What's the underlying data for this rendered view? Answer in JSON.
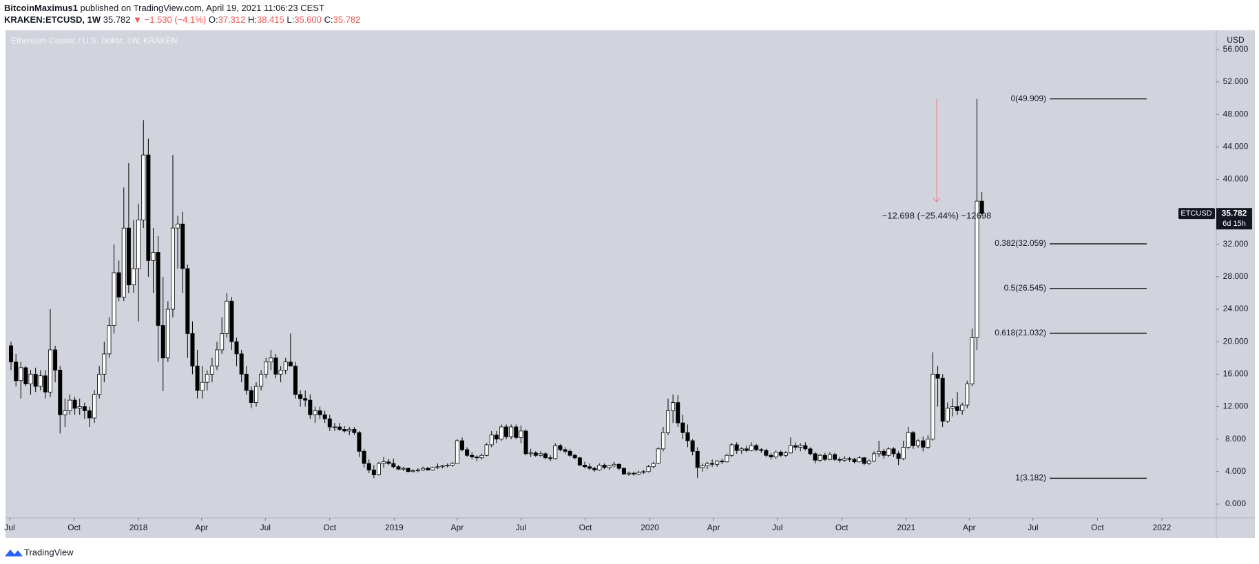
{
  "header": {
    "author": "BitcoinMaximus1",
    "published": "published on TradingView.com, April 19, 2021 11:06:23 CEST",
    "symbol": "KRAKEN:ETCUSD, 1W",
    "last": "35.782",
    "change": "▼ −1.530 (−4.1%)",
    "ohlc": [
      {
        "key": "O:",
        "value": "37.312"
      },
      {
        "key": "H:",
        "value": "38.415"
      },
      {
        "key": "L:",
        "value": "35.600"
      },
      {
        "key": "C:",
        "value": "35.782"
      }
    ]
  },
  "chart_data": {
    "type": "candlestick",
    "title": "Ethereum Classic / U.S. Dollar, 1W, KRAKEN",
    "axis_label": "USD",
    "up_color": "#ffffff",
    "down_color": "#000000",
    "grid": false,
    "xlim": [
      -1.13,
      245.81
    ],
    "xticks": [
      {
        "value": -0.29,
        "label": "Jul"
      },
      {
        "value": 12.86,
        "label": "Oct"
      },
      {
        "value": 26,
        "label": "2018"
      },
      {
        "value": 38.86,
        "label": "Apr"
      },
      {
        "value": 51.86,
        "label": "Jul"
      },
      {
        "value": 65,
        "label": "Oct"
      },
      {
        "value": 78.14,
        "label": "2019"
      },
      {
        "value": 91,
        "label": "Apr"
      },
      {
        "value": 104,
        "label": "Jul"
      },
      {
        "value": 117.14,
        "label": "Oct"
      },
      {
        "value": 130.29,
        "label": "2020"
      },
      {
        "value": 143.29,
        "label": "Apr"
      },
      {
        "value": 156.29,
        "label": "Jul"
      },
      {
        "value": 169.43,
        "label": "Oct"
      },
      {
        "value": 182.57,
        "label": "2021"
      },
      {
        "value": 195.43,
        "label": "Apr"
      },
      {
        "value": 208.43,
        "label": "Jul"
      },
      {
        "value": 221.57,
        "label": "Oct"
      },
      {
        "value": 234.71,
        "label": "2022"
      }
    ],
    "ylim": [
      -1.7,
      58.36
    ],
    "yticks": [
      {
        "value": 0,
        "label": "0.000"
      },
      {
        "value": 4,
        "label": "4.000"
      },
      {
        "value": 8,
        "label": "8.000"
      },
      {
        "value": 12,
        "label": "12.000"
      },
      {
        "value": 16,
        "label": "16.000"
      },
      {
        "value": 20,
        "label": "20.000"
      },
      {
        "value": 24,
        "label": "24.000"
      },
      {
        "value": 28,
        "label": "28.000"
      },
      {
        "value": 32,
        "label": "32.000"
      },
      {
        "value": 36,
        "label": "36.000"
      },
      {
        "value": 40,
        "label": "40.000"
      },
      {
        "value": 44,
        "label": "44.000"
      },
      {
        "value": 48,
        "label": "48.000"
      },
      {
        "value": 52,
        "label": "52.000"
      },
      {
        "value": 56,
        "label": "56.000"
      }
    ],
    "candles": [
      [
        19.5,
        20,
        16.5,
        17.5
      ],
      [
        17.5,
        18.5,
        14.5,
        15.2
      ],
      [
        15.2,
        17.5,
        13,
        16.8
      ],
      [
        16.8,
        17,
        14.5,
        14.8
      ],
      [
        14.8,
        16.5,
        13.5,
        16
      ],
      [
        16,
        16.8,
        13.8,
        14.5
      ],
      [
        14.5,
        16.5,
        14,
        15.8
      ],
      [
        15.8,
        16.5,
        13,
        13.8
      ],
      [
        13.8,
        24,
        13.2,
        19
      ],
      [
        19,
        19.5,
        15,
        16.5
      ],
      [
        16.5,
        17,
        8.7,
        11
      ],
      [
        11,
        13,
        9.5,
        11.5
      ],
      [
        11.5,
        13.5,
        11,
        12.8
      ],
      [
        12.8,
        13.2,
        11,
        11.8
      ],
      [
        11.8,
        13,
        11,
        12
      ],
      [
        12,
        12.5,
        10.5,
        11.5
      ],
      [
        11.5,
        12,
        9.5,
        10.6
      ],
      [
        10.6,
        14,
        10,
        13.5
      ],
      [
        13.5,
        17,
        13,
        16
      ],
      [
        16,
        20,
        15,
        18.5
      ],
      [
        18.5,
        23,
        18,
        22
      ],
      [
        22,
        32,
        21,
        28.5
      ],
      [
        28.5,
        30,
        25,
        25.5
      ],
      [
        25.5,
        39,
        25,
        34
      ],
      [
        34,
        42,
        26,
        27
      ],
      [
        27,
        35,
        26,
        29
      ],
      [
        29,
        37,
        22.5,
        35
      ],
      [
        35,
        47.3,
        34,
        43
      ],
      [
        43,
        45,
        28,
        30
      ],
      [
        30,
        34,
        26,
        31
      ],
      [
        31,
        33,
        17.5,
        22
      ],
      [
        22,
        28,
        13.9,
        18
      ],
      [
        18,
        25,
        17.5,
        24
      ],
      [
        24,
        43,
        23,
        34
      ],
      [
        34,
        35.5,
        29,
        34.5
      ],
      [
        34.5,
        36,
        26,
        29
      ],
      [
        29,
        29.5,
        18,
        21
      ],
      [
        21,
        22.5,
        16,
        17
      ],
      [
        17,
        19,
        13,
        14
      ],
      [
        14,
        17,
        13,
        15
      ],
      [
        15,
        16.5,
        14,
        16
      ],
      [
        16,
        18,
        15,
        17
      ],
      [
        17,
        20,
        16.5,
        19
      ],
      [
        19,
        23,
        18.5,
        21
      ],
      [
        21,
        26,
        20.5,
        25
      ],
      [
        25,
        25.5,
        19,
        20
      ],
      [
        20,
        20.5,
        17,
        18.5
      ],
      [
        18.5,
        19,
        15,
        16
      ],
      [
        16,
        17,
        13.5,
        14
      ],
      [
        14,
        14.5,
        11.8,
        12.5
      ],
      [
        12.5,
        15,
        12,
        14.5
      ],
      [
        14.5,
        16.5,
        14,
        16
      ],
      [
        16,
        18,
        15.5,
        17.5
      ],
      [
        17.5,
        19,
        16.5,
        18
      ],
      [
        18,
        18.5,
        15.5,
        16
      ],
      [
        16,
        17,
        15,
        16.5
      ],
      [
        16.5,
        18,
        16,
        17.5
      ],
      [
        17.5,
        21,
        17,
        17
      ],
      [
        17,
        17.5,
        13,
        13.5
      ],
      [
        13.5,
        14,
        12,
        13
      ],
      [
        13,
        14,
        12,
        12.8
      ],
      [
        12.8,
        13.5,
        10.5,
        11
      ],
      [
        11,
        12,
        10,
        11.5
      ],
      [
        11.5,
        12,
        10.5,
        11
      ],
      [
        11,
        11.5,
        10,
        10.5
      ],
      [
        10.5,
        11,
        9,
        9.5
      ],
      [
        9.5,
        10,
        9,
        9.5
      ],
      [
        9.5,
        10,
        9,
        9.2
      ],
      [
        9.2,
        9.6,
        8.8,
        9
      ],
      [
        9,
        9.5,
        8.5,
        9.2
      ],
      [
        9.2,
        9.5,
        8.5,
        8.8
      ],
      [
        8.8,
        9,
        5.8,
        6.5
      ],
      [
        6.5,
        6.8,
        4.5,
        5
      ],
      [
        5,
        5.5,
        3.8,
        4.2
      ],
      [
        4.2,
        4.8,
        3.2,
        3.6
      ],
      [
        3.6,
        5.2,
        3.5,
        5
      ],
      [
        5,
        5.8,
        4.5,
        5.2
      ],
      [
        5.2,
        5.6,
        4.8,
        5
      ],
      [
        5,
        5.6,
        4.4,
        4.6
      ],
      [
        4.6,
        4.8,
        4.2,
        4.3
      ],
      [
        4.3,
        4.6,
        4.1,
        4.4
      ],
      [
        4.4,
        4.5,
        3.9,
        4
      ],
      [
        4,
        4.3,
        3.9,
        4.1
      ],
      [
        4.1,
        4.4,
        3.9,
        4.2
      ],
      [
        4.2,
        4.6,
        4.1,
        4.4
      ],
      [
        4.4,
        4.6,
        4.1,
        4.2
      ],
      [
        4.2,
        4.6,
        4.1,
        4.5
      ],
      [
        4.5,
        5,
        4.3,
        4.6
      ],
      [
        4.6,
        4.8,
        4.4,
        4.7
      ],
      [
        4.7,
        5,
        4.5,
        4.8
      ],
      [
        4.8,
        5.2,
        4.6,
        5
      ],
      [
        5,
        8,
        5,
        7.8
      ],
      [
        7.8,
        8.2,
        6.5,
        6.7
      ],
      [
        6.7,
        7,
        5.8,
        6
      ],
      [
        6,
        6.4,
        5.5,
        5.8
      ],
      [
        5.8,
        6,
        5.3,
        5.7
      ],
      [
        5.7,
        6.2,
        5.5,
        6
      ],
      [
        6,
        7.5,
        5.9,
        7.3
      ],
      [
        7.3,
        9,
        7,
        8.5
      ],
      [
        8.5,
        9,
        7.5,
        8
      ],
      [
        8,
        9.8,
        7.8,
        9.5
      ],
      [
        9.5,
        9.8,
        8,
        8.3
      ],
      [
        8.3,
        9.8,
        8,
        9.5
      ],
      [
        9.5,
        9.8,
        8,
        8.2
      ],
      [
        8.2,
        9.7,
        7.5,
        9
      ],
      [
        9,
        9.2,
        6,
        6.2
      ],
      [
        6.2,
        6.8,
        5.8,
        6.3
      ],
      [
        6.3,
        6.5,
        5.8,
        6
      ],
      [
        6,
        6.5,
        5.8,
        6.2
      ],
      [
        6.2,
        6.4,
        5.5,
        5.7
      ],
      [
        5.7,
        6,
        5.3,
        5.6
      ],
      [
        5.6,
        7.5,
        5.5,
        7.2
      ],
      [
        7.2,
        7.4,
        6.5,
        6.7
      ],
      [
        6.7,
        7,
        6.2,
        6.5
      ],
      [
        6.5,
        6.8,
        5.8,
        6
      ],
      [
        6,
        6.2,
        5.5,
        5.7
      ],
      [
        5.7,
        5.8,
        4.7,
        4.8
      ],
      [
        4.8,
        5.2,
        4.4,
        4.6
      ],
      [
        4.6,
        5,
        4.2,
        4.4
      ],
      [
        4.4,
        4.6,
        4,
        4.2
      ],
      [
        4.2,
        5,
        4.1,
        4.8
      ],
      [
        4.8,
        5,
        4.3,
        4.5
      ],
      [
        4.5,
        4.8,
        4.2,
        4.7
      ],
      [
        4.7,
        5.2,
        4.5,
        4.9
      ],
      [
        4.9,
        5,
        4.2,
        4.4
      ],
      [
        4.4,
        4.5,
        3.6,
        3.7
      ],
      [
        3.7,
        4,
        3.5,
        3.8
      ],
      [
        3.8,
        4,
        3.5,
        3.7
      ],
      [
        3.7,
        4.1,
        3.6,
        3.9
      ],
      [
        3.9,
        4.2,
        3.7,
        4
      ],
      [
        4,
        4.8,
        3.9,
        4.6
      ],
      [
        4.6,
        5.2,
        4.4,
        5
      ],
      [
        5,
        7,
        4.9,
        6.8
      ],
      [
        6.8,
        9.5,
        6.5,
        8.8
      ],
      [
        8.8,
        13,
        8.5,
        11.5
      ],
      [
        11.5,
        13.5,
        10,
        12.5
      ],
      [
        12.5,
        13.4,
        9.5,
        10
      ],
      [
        10,
        11,
        8,
        8.8
      ],
      [
        8.8,
        9.8,
        7,
        7.8
      ],
      [
        7.8,
        8,
        6,
        6.5
      ],
      [
        6.5,
        7,
        3.2,
        4.5
      ],
      [
        4.5,
        5,
        4,
        4.7
      ],
      [
        4.7,
        5.2,
        4.3,
        5
      ],
      [
        5,
        5.5,
        4.6,
        4.9
      ],
      [
        4.9,
        5.4,
        4.6,
        5.3
      ],
      [
        5.3,
        5.6,
        4.9,
        5.2
      ],
      [
        5.2,
        6.2,
        5.1,
        6
      ],
      [
        6,
        7.5,
        5.8,
        7.3
      ],
      [
        7.3,
        7.6,
        6.2,
        6.6
      ],
      [
        6.6,
        7,
        6.2,
        6.8
      ],
      [
        6.8,
        7.2,
        6.4,
        6.6
      ],
      [
        6.6,
        7.6,
        6.5,
        7.2
      ],
      [
        7.2,
        7.4,
        6.5,
        6.7
      ],
      [
        6.7,
        6.9,
        6.3,
        6.6
      ],
      [
        6.6,
        6.8,
        5.8,
        6
      ],
      [
        6,
        6.3,
        5.5,
        5.8
      ],
      [
        5.8,
        6.6,
        5.6,
        6.4
      ],
      [
        6.4,
        6.6,
        5.8,
        6
      ],
      [
        6,
        6.5,
        5.8,
        6.3
      ],
      [
        6.3,
        8.2,
        6.2,
        7.2
      ],
      [
        7.2,
        7.6,
        6.6,
        7
      ],
      [
        7,
        7.5,
        6.5,
        7.2
      ],
      [
        7.2,
        7.6,
        6.6,
        6.8
      ],
      [
        6.8,
        7,
        6,
        6.2
      ],
      [
        6.2,
        6.4,
        5,
        5.4
      ],
      [
        5.4,
        6.2,
        5.2,
        6
      ],
      [
        6,
        6.3,
        5.3,
        5.5
      ],
      [
        5.5,
        6.4,
        5.4,
        6.1
      ],
      [
        6.1,
        6.3,
        5.3,
        5.5
      ],
      [
        5.5,
        5.8,
        5.1,
        5.4
      ],
      [
        5.4,
        5.9,
        5.2,
        5.6
      ],
      [
        5.6,
        5.8,
        5.2,
        5.5
      ],
      [
        5.5,
        5.7,
        5,
        5.2
      ],
      [
        5.2,
        5.9,
        5.1,
        5.7
      ],
      [
        5.7,
        5.8,
        4.8,
        5
      ],
      [
        5,
        5.5,
        4.8,
        5.3
      ],
      [
        5.3,
        6.5,
        5.2,
        6.2
      ],
      [
        6.2,
        7.8,
        5.8,
        6.5
      ],
      [
        6.5,
        6.8,
        5.6,
        6
      ],
      [
        6,
        7,
        5.8,
        6.8
      ],
      [
        6.8,
        7,
        5.8,
        6.2
      ],
      [
        6.2,
        6.5,
        4.8,
        5.6
      ],
      [
        5.6,
        7.8,
        5.4,
        7
      ],
      [
        7,
        9.5,
        6.8,
        8.8
      ],
      [
        8.8,
        9,
        6.8,
        7.2
      ],
      [
        7.2,
        8,
        6.9,
        7.8
      ],
      [
        7.8,
        8.3,
        6.5,
        7
      ],
      [
        7,
        8.5,
        6.8,
        8
      ],
      [
        8,
        18.7,
        7.8,
        16
      ],
      [
        16,
        17,
        12,
        15.5
      ],
      [
        15.5,
        16,
        9.5,
        10.2
      ],
      [
        10.2,
        12.5,
        10,
        11.8
      ],
      [
        11.8,
        13,
        10.8,
        12
      ],
      [
        12,
        13.8,
        11,
        11.5
      ],
      [
        11.5,
        12.5,
        11,
        12.2
      ],
      [
        12.2,
        15.2,
        11.8,
        14.8
      ],
      [
        14.8,
        21.6,
        14.5,
        20.5
      ],
      [
        20.5,
        49.909,
        19,
        37.312
      ],
      [
        37.312,
        38.415,
        35.6,
        35.782
      ]
    ],
    "last_price": {
      "symbol": "ETCUSD",
      "value": 35.782,
      "label": "35.782",
      "countdown": "6d 15h"
    },
    "fib_color": "#000000",
    "fib_levels": [
      {
        "label": "0(49.909)",
        "value": 49.909
      },
      {
        "label": "0.382(32.059)",
        "value": 32.059
      },
      {
        "label": "0.5(26.545)",
        "value": 26.545
      },
      {
        "label": "0.618(21.032)",
        "value": 21.032
      },
      {
        "label": "1(3.182)",
        "value": 3.182
      }
    ],
    "measure": {
      "from": 49.909,
      "to": 37.211,
      "label": "−12.698 (−25.44%) −12698",
      "color": "#f07a8c"
    }
  },
  "footer": {
    "brand": "TradingView"
  }
}
